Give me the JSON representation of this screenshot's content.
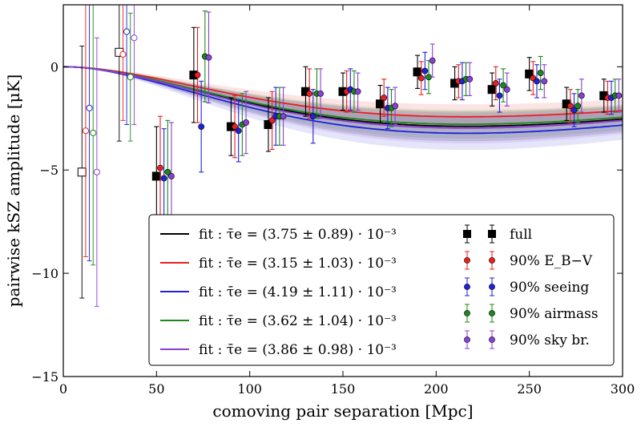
{
  "chart_data": {
    "type": "scatter",
    "xlabel": "comoving pair separation [Mpc]",
    "ylabel": "pairwise kSZ amplitude [μK]",
    "xlim": [
      0,
      300
    ],
    "ylim": [
      -15,
      3
    ],
    "xticks": [
      "0",
      "50",
      "100",
      "150",
      "200",
      "250",
      "300"
    ],
    "yticks": [
      "−15",
      "−10",
      "−5",
      "0"
    ],
    "grid": false,
    "legend_location": "lower-center",
    "fits": [
      {
        "label": "fit : τ̄e = (3.75 ± 0.89) · 10⁻³",
        "color": "#000000",
        "tau": 3.75
      },
      {
        "label": "fit : τ̄e = (3.15 ± 1.03) · 10⁻³",
        "color": "#e8201f",
        "tau": 3.15
      },
      {
        "label": "fit : τ̄e = (4.19 ± 1.11) · 10⁻³",
        "color": "#1f22d9",
        "tau": 4.19
      },
      {
        "label": "fit : τ̄e = (3.62 ± 1.04) · 10⁻³",
        "color": "#1a8a1a",
        "tau": 3.62
      },
      {
        "label": "fit : τ̄e = (3.86 ± 0.98) · 10⁻³",
        "color": "#8a3fd6",
        "tau": 3.86
      }
    ],
    "series": [
      {
        "name": "full",
        "color": "#000000",
        "marker": "square",
        "offset": 0,
        "x": [
          10,
          30,
          50,
          70,
          90,
          110,
          130,
          150,
          170,
          190,
          210,
          230,
          250,
          270,
          290
        ],
        "y": [
          -5.1,
          0.7,
          -5.3,
          -0.4,
          -2.9,
          -2.8,
          -1.2,
          -1.2,
          -1.8,
          -0.25,
          -0.8,
          -1.1,
          -0.35,
          -1.8,
          -1.4
        ],
        "err": [
          6.1,
          4.3,
          2.4,
          2.3,
          1.4,
          1.3,
          1.2,
          0.9,
          0.9,
          0.8,
          0.8,
          0.8,
          0.8,
          0.8,
          0.8
        ],
        "open_until_x": 35
      },
      {
        "name": "90% E_B−V",
        "color": "#e8201f",
        "marker": "circle",
        "offset": 2,
        "x": [
          10,
          30,
          50,
          70,
          90,
          110,
          130,
          150,
          170,
          190,
          210,
          230,
          250,
          270,
          290
        ],
        "y": [
          -3.1,
          0.6,
          -4.9,
          -0.4,
          -2.9,
          -2.6,
          -1.3,
          -1.2,
          -1.5,
          -0.55,
          -0.7,
          -0.8,
          -0.55,
          -1.9,
          -1.5
        ],
        "err": [
          6.1,
          3.2,
          2.5,
          2.3,
          1.5,
          1.4,
          1.2,
          1.0,
          0.9,
          0.8,
          0.8,
          0.8,
          0.8,
          0.8,
          0.8
        ],
        "open_until_x": 35
      },
      {
        "name": "90% seeing",
        "color": "#1f22d9",
        "marker": "circle",
        "offset": 4,
        "x": [
          10,
          30,
          50,
          70,
          90,
          110,
          130,
          150,
          170,
          190,
          210,
          230,
          250,
          270,
          290
        ],
        "y": [
          -2.0,
          1.7,
          -5.4,
          -2.9,
          -3.1,
          -2.4,
          -2.4,
          -1.1,
          -2.0,
          -0.2,
          -0.7,
          -1.4,
          -0.7,
          -2.1,
          -1.5
        ],
        "err": [
          7.4,
          4.5,
          2.4,
          2.2,
          1.5,
          1.4,
          1.3,
          1.0,
          1.0,
          0.9,
          0.9,
          0.8,
          0.8,
          0.8,
          0.8
        ],
        "open_until_x": 35
      },
      {
        "name": "90% airmass",
        "color": "#1a8a1a",
        "marker": "circle",
        "offset": 6,
        "x": [
          10,
          30,
          50,
          70,
          90,
          110,
          130,
          150,
          170,
          190,
          210,
          230,
          250,
          270,
          290
        ],
        "y": [
          -3.2,
          -0.5,
          -5.1,
          0.5,
          -2.8,
          -2.4,
          -1.3,
          -1.2,
          -2.0,
          -0.5,
          -0.6,
          -0.9,
          -0.3,
          -1.9,
          -1.4
        ],
        "err": [
          6.4,
          3.1,
          2.5,
          2.2,
          1.5,
          1.4,
          1.2,
          1.0,
          0.9,
          0.8,
          0.8,
          0.8,
          0.8,
          0.8,
          0.8
        ],
        "open_until_x": 35
      },
      {
        "name": "90% sky br.",
        "color": "#8a3fd6",
        "marker": "circle",
        "offset": 8,
        "x": [
          10,
          30,
          50,
          70,
          90,
          110,
          130,
          150,
          170,
          190,
          210,
          230,
          250,
          270,
          290
        ],
        "y": [
          -5.1,
          1.4,
          -5.3,
          0.45,
          -2.7,
          -2.4,
          -1.3,
          -1.2,
          -1.9,
          0.3,
          -0.6,
          -1.1,
          -0.7,
          -1.4,
          -1.4
        ],
        "err": [
          6.5,
          4.2,
          2.6,
          2.2,
          1.5,
          1.4,
          1.2,
          0.9,
          0.9,
          0.8,
          0.8,
          0.8,
          0.8,
          0.8,
          0.8
        ],
        "open_until_x": 35
      }
    ]
  }
}
